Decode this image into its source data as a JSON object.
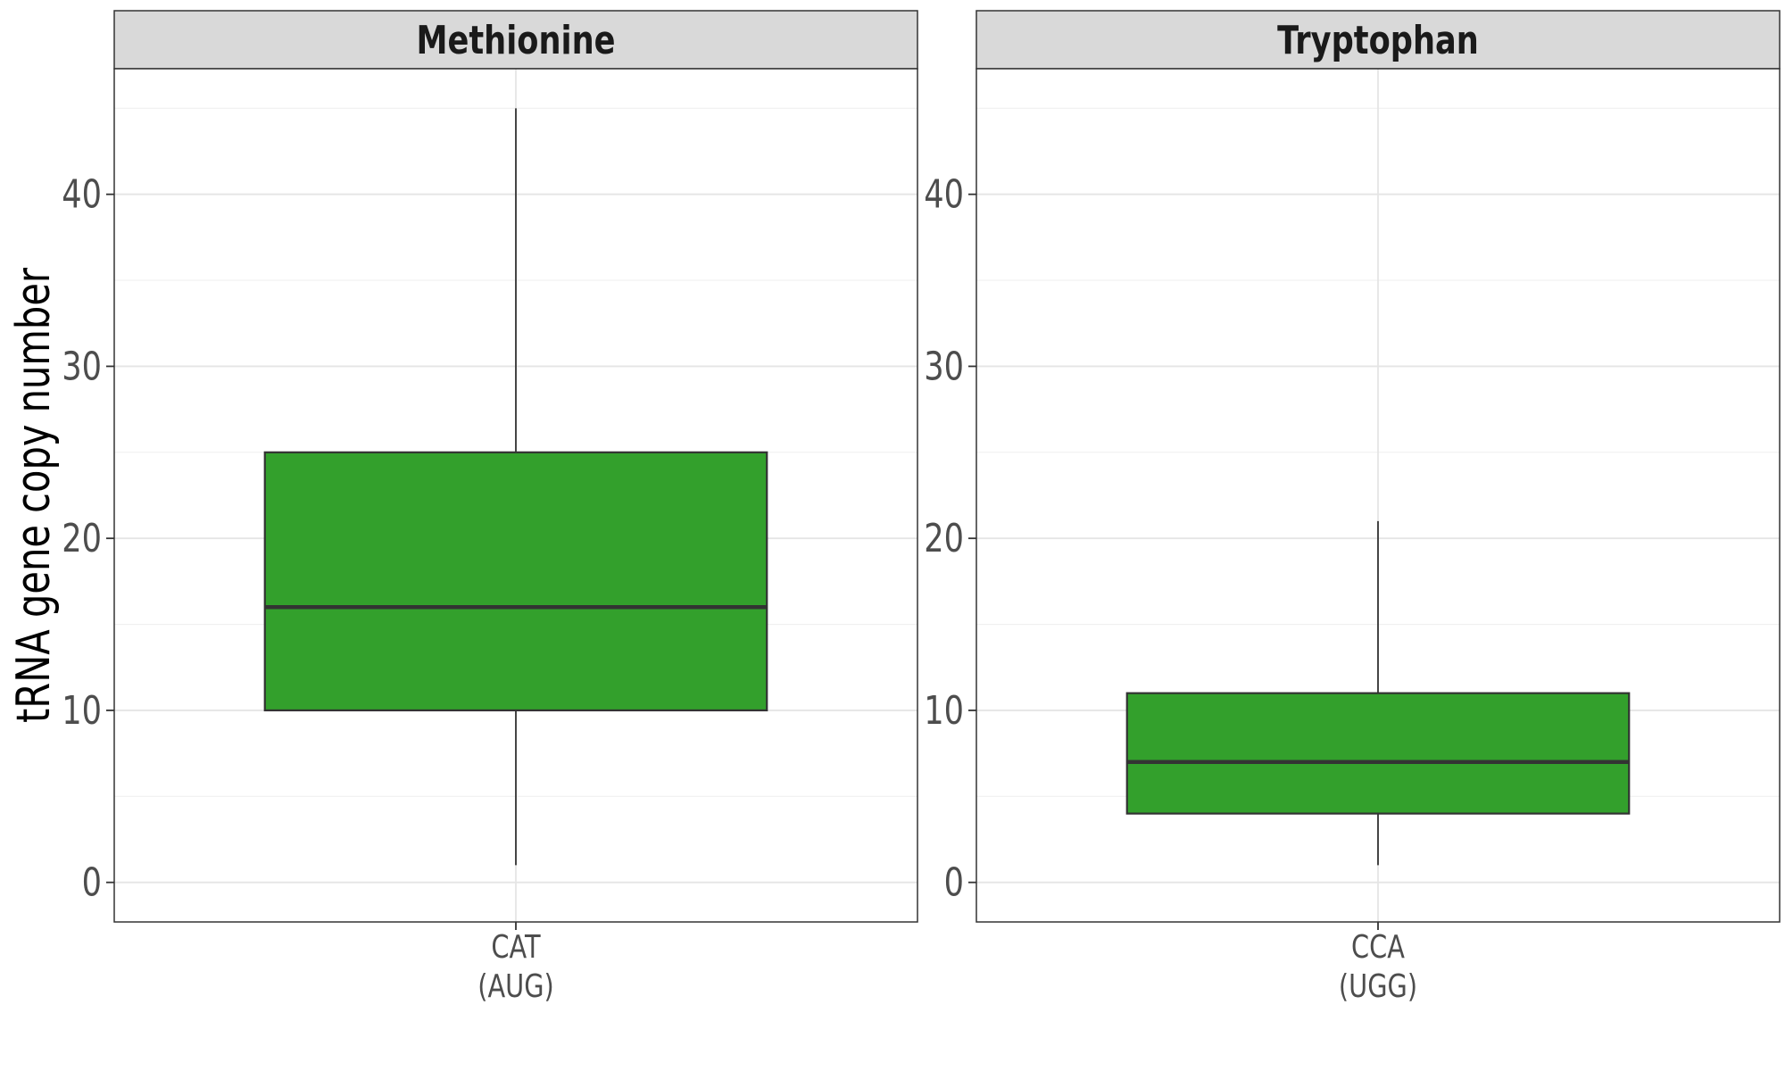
{
  "chart_data": {
    "type": "box",
    "ylabel": "tRNA gene copy number",
    "ylim": [
      -2.3,
      47.3
    ],
    "yticks": [
      0,
      10,
      20,
      30,
      40
    ],
    "grid": true,
    "fill_color": "#33a02c",
    "panels": [
      {
        "title": "Methionine",
        "categories": [
          {
            "codon": "CAT",
            "anticodon": "(AUG)"
          }
        ],
        "boxes": [
          {
            "min": 1,
            "q1": 10,
            "median": 16,
            "q3": 25,
            "max": 45
          }
        ]
      },
      {
        "title": "Tryptophan",
        "categories": [
          {
            "codon": "CCA",
            "anticodon": "(UGG)"
          }
        ],
        "boxes": [
          {
            "min": 1,
            "q1": 4,
            "median": 7,
            "q3": 11,
            "max": 21
          }
        ]
      }
    ]
  }
}
